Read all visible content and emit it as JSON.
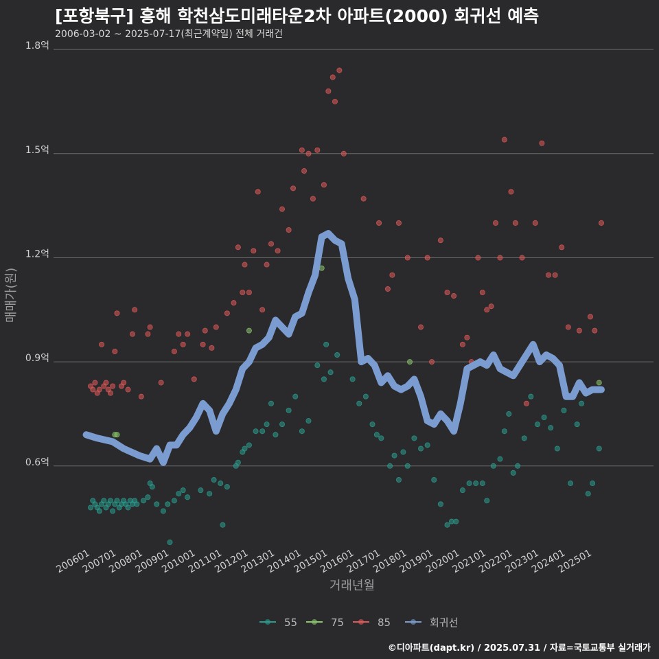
{
  "title": "[포항북구] 흥해 학천삼도미래타운2차 아파트(2000) 회귀선 예측",
  "subtitle": "2006-03-02 ~ 2025-07-17(최근계약일) 전체 거래건",
  "footer": "©디아파트(dapt.kr) / 2025.07.31 / 자료=국토교통부 실거래가",
  "chart_data": {
    "type": "scatter",
    "xlabel": "거래년월",
    "ylabel": "매매가(원)",
    "x_range": [
      "2005-10",
      "2025-12"
    ],
    "ylim": [
      0.38,
      1.82
    ],
    "y_ticks": [
      {
        "value": 0.6,
        "label": "0.6억"
      },
      {
        "value": 0.9,
        "label": "0.9억"
      },
      {
        "value": 1.2,
        "label": "1.2억"
      },
      {
        "value": 1.5,
        "label": "1.5억"
      },
      {
        "value": 1.8,
        "label": "1.8억"
      }
    ],
    "x_ticks": [
      "200601",
      "200701",
      "200801",
      "200901",
      "201001",
      "201101",
      "201201",
      "201301",
      "201401",
      "201501",
      "201601",
      "201701",
      "201801",
      "201901",
      "202001",
      "202101",
      "202201",
      "202301",
      "202401",
      "202501"
    ],
    "grid": "horizontal",
    "legend_position": "bottom",
    "colors": {
      "55": "#2a9d8f",
      "75": "#8cc66d",
      "85": "#e05a5a",
      "회귀선": "#7b9cd0"
    },
    "series": [
      {
        "name": "55",
        "color": "#2a9d8f",
        "kind": "points",
        "points": [
          [
            "2006-03",
            0.48
          ],
          [
            "2006-04",
            0.5
          ],
          [
            "2006-05",
            0.49
          ],
          [
            "2006-06",
            0.48
          ],
          [
            "2006-07",
            0.47
          ],
          [
            "2006-08",
            0.49
          ],
          [
            "2006-09",
            0.5
          ],
          [
            "2006-10",
            0.48
          ],
          [
            "2006-11",
            0.49
          ],
          [
            "2006-12",
            0.5
          ],
          [
            "2007-01",
            0.47
          ],
          [
            "2007-02",
            0.49
          ],
          [
            "2007-03",
            0.5
          ],
          [
            "2007-04",
            0.48
          ],
          [
            "2007-05",
            0.49
          ],
          [
            "2007-06",
            0.5
          ],
          [
            "2007-07",
            0.49
          ],
          [
            "2007-08",
            0.48
          ],
          [
            "2007-09",
            0.5
          ],
          [
            "2007-10",
            0.49
          ],
          [
            "2007-11",
            0.5
          ],
          [
            "2007-12",
            0.49
          ],
          [
            "2008-03",
            0.5
          ],
          [
            "2008-05",
            0.51
          ],
          [
            "2008-06",
            0.55
          ],
          [
            "2008-07",
            0.54
          ],
          [
            "2008-09",
            0.49
          ],
          [
            "2008-12",
            0.47
          ],
          [
            "2009-02",
            0.49
          ],
          [
            "2009-03",
            0.38
          ],
          [
            "2009-05",
            0.5
          ],
          [
            "2009-07",
            0.52
          ],
          [
            "2009-09",
            0.53
          ],
          [
            "2009-11",
            0.51
          ],
          [
            "2010-05",
            0.53
          ],
          [
            "2010-09",
            0.52
          ],
          [
            "2010-11",
            0.56
          ],
          [
            "2011-02",
            0.55
          ],
          [
            "2011-03",
            0.43
          ],
          [
            "2011-05",
            0.54
          ],
          [
            "2011-09",
            0.6
          ],
          [
            "2011-10",
            0.61
          ],
          [
            "2011-12",
            0.64
          ],
          [
            "2012-01",
            0.65
          ],
          [
            "2012-03",
            0.66
          ],
          [
            "2012-06",
            0.7
          ],
          [
            "2012-09",
            0.7
          ],
          [
            "2012-11",
            0.72
          ],
          [
            "2013-01",
            0.78
          ],
          [
            "2013-03",
            0.69
          ],
          [
            "2013-06",
            0.72
          ],
          [
            "2013-09",
            0.76
          ],
          [
            "2013-12",
            0.8
          ],
          [
            "2014-03",
            0.7
          ],
          [
            "2014-06",
            0.73
          ],
          [
            "2014-10",
            0.89
          ],
          [
            "2015-01",
            0.85
          ],
          [
            "2015-02",
            0.95
          ],
          [
            "2015-04",
            0.87
          ],
          [
            "2015-07",
            0.92
          ],
          [
            "2016-02",
            0.85
          ],
          [
            "2016-05",
            0.78
          ],
          [
            "2016-08",
            0.8
          ],
          [
            "2016-11",
            0.72
          ],
          [
            "2017-01",
            0.69
          ],
          [
            "2017-03",
            0.68
          ],
          [
            "2017-07",
            0.6
          ],
          [
            "2017-09",
            0.63
          ],
          [
            "2017-11",
            0.56
          ],
          [
            "2018-01",
            0.64
          ],
          [
            "2018-03",
            0.6
          ],
          [
            "2018-06",
            0.68
          ],
          [
            "2018-09",
            0.65
          ],
          [
            "2018-12",
            0.66
          ],
          [
            "2019-03",
            0.56
          ],
          [
            "2019-06",
            0.49
          ],
          [
            "2019-09",
            0.43
          ],
          [
            "2019-11",
            0.44
          ],
          [
            "2020-01",
            0.44
          ],
          [
            "2020-04",
            0.53
          ],
          [
            "2020-07",
            0.55
          ],
          [
            "2020-10",
            0.55
          ],
          [
            "2021-01",
            0.55
          ],
          [
            "2021-03",
            0.5
          ],
          [
            "2021-06",
            0.6
          ],
          [
            "2021-09",
            0.62
          ],
          [
            "2021-11",
            0.7
          ],
          [
            "2022-01",
            0.75
          ],
          [
            "2022-03",
            0.58
          ],
          [
            "2022-05",
            0.6
          ],
          [
            "2022-08",
            0.68
          ],
          [
            "2022-11",
            0.8
          ],
          [
            "2023-02",
            0.72
          ],
          [
            "2023-05",
            0.74
          ],
          [
            "2023-08",
            0.71
          ],
          [
            "2023-11",
            0.65
          ],
          [
            "2024-02",
            0.76
          ],
          [
            "2024-05",
            0.55
          ],
          [
            "2024-08",
            0.72
          ],
          [
            "2024-10",
            0.78
          ],
          [
            "2025-01",
            0.52
          ],
          [
            "2025-03",
            0.55
          ],
          [
            "2025-06",
            0.65
          ]
        ]
      },
      {
        "name": "75",
        "color": "#8cc66d",
        "kind": "points",
        "points": [
          [
            "2007-02",
            0.69
          ],
          [
            "2007-03",
            0.69
          ],
          [
            "2012-03",
            0.99
          ],
          [
            "2014-12",
            1.17
          ],
          [
            "2018-04",
            0.9
          ],
          [
            "2025-06",
            0.84
          ]
        ]
      },
      {
        "name": "85",
        "color": "#e05a5a",
        "kind": "points",
        "points": [
          [
            "2006-03",
            0.83
          ],
          [
            "2006-04",
            0.82
          ],
          [
            "2006-05",
            0.84
          ],
          [
            "2006-06",
            0.81
          ],
          [
            "2006-07",
            0.82
          ],
          [
            "2006-08",
            0.95
          ],
          [
            "2006-09",
            0.83
          ],
          [
            "2006-10",
            0.84
          ],
          [
            "2006-11",
            0.82
          ],
          [
            "2006-12",
            0.81
          ],
          [
            "2007-01",
            0.83
          ],
          [
            "2007-02",
            0.93
          ],
          [
            "2007-03",
            1.04
          ],
          [
            "2007-05",
            0.83
          ],
          [
            "2007-06",
            0.84
          ],
          [
            "2007-08",
            0.82
          ],
          [
            "2007-10",
            0.98
          ],
          [
            "2007-11",
            1.05
          ],
          [
            "2008-02",
            0.8
          ],
          [
            "2008-06",
            1.0
          ],
          [
            "2008-05",
            0.98
          ],
          [
            "2008-11",
            0.84
          ],
          [
            "2009-05",
            0.93
          ],
          [
            "2009-07",
            0.98
          ],
          [
            "2009-09",
            0.95
          ],
          [
            "2009-11",
            0.98
          ],
          [
            "2010-02",
            0.85
          ],
          [
            "2010-06",
            0.95
          ],
          [
            "2010-07",
            0.99
          ],
          [
            "2010-10",
            0.94
          ],
          [
            "2010-12",
            1.0
          ],
          [
            "2011-05",
            1.04
          ],
          [
            "2011-08",
            1.07
          ],
          [
            "2011-10",
            1.23
          ],
          [
            "2011-12",
            1.1
          ],
          [
            "2012-01",
            1.18
          ],
          [
            "2012-03",
            1.1
          ],
          [
            "2012-05",
            1.22
          ],
          [
            "2012-07",
            1.39
          ],
          [
            "2012-09",
            1.05
          ],
          [
            "2012-11",
            1.18
          ],
          [
            "2013-01",
            1.24
          ],
          [
            "2013-04",
            1.22
          ],
          [
            "2013-06",
            1.34
          ],
          [
            "2013-09",
            1.28
          ],
          [
            "2013-11",
            1.4
          ],
          [
            "2014-03",
            1.51
          ],
          [
            "2014-04",
            1.45
          ],
          [
            "2014-06",
            1.5
          ],
          [
            "2014-08",
            1.37
          ],
          [
            "2014-10",
            1.51
          ],
          [
            "2015-01",
            1.41
          ],
          [
            "2015-03",
            1.68
          ],
          [
            "2015-05",
            1.72
          ],
          [
            "2015-06",
            1.65
          ],
          [
            "2015-08",
            1.74
          ],
          [
            "2015-10",
            1.5
          ],
          [
            "2016-07",
            1.37
          ],
          [
            "2017-02",
            1.3
          ],
          [
            "2017-06",
            1.11
          ],
          [
            "2017-08",
            1.15
          ],
          [
            "2017-11",
            1.3
          ],
          [
            "2018-03",
            1.2
          ],
          [
            "2018-09",
            1.0
          ],
          [
            "2018-12",
            1.2
          ],
          [
            "2019-02",
            0.9
          ],
          [
            "2019-06",
            1.25
          ],
          [
            "2019-09",
            1.1
          ],
          [
            "2019-12",
            1.09
          ],
          [
            "2020-04",
            0.95
          ],
          [
            "2020-06",
            0.97
          ],
          [
            "2020-08",
            0.9
          ],
          [
            "2020-11",
            1.2
          ],
          [
            "2021-01",
            1.1
          ],
          [
            "2021-03",
            1.05
          ],
          [
            "2021-05",
            1.06
          ],
          [
            "2021-07",
            1.3
          ],
          [
            "2021-09",
            1.2
          ],
          [
            "2021-11",
            1.54
          ],
          [
            "2022-02",
            1.39
          ],
          [
            "2022-04",
            1.3
          ],
          [
            "2022-07",
            1.2
          ],
          [
            "2022-09",
            0.78
          ],
          [
            "2023-01",
            1.3
          ],
          [
            "2023-04",
            1.53
          ],
          [
            "2023-07",
            1.15
          ],
          [
            "2023-10",
            1.15
          ],
          [
            "2024-01",
            1.23
          ],
          [
            "2024-04",
            1.0
          ],
          [
            "2024-09",
            0.99
          ],
          [
            "2025-02",
            1.03
          ],
          [
            "2025-04",
            0.99
          ],
          [
            "2025-07",
            1.3
          ]
        ]
      },
      {
        "name": "회귀선",
        "color": "#7b9cd0",
        "kind": "line",
        "points": [
          [
            "2006-01",
            0.69
          ],
          [
            "2006-06",
            0.68
          ],
          [
            "2007-01",
            0.67
          ],
          [
            "2007-06",
            0.65
          ],
          [
            "2008-01",
            0.63
          ],
          [
            "2008-06",
            0.62
          ],
          [
            "2008-09",
            0.65
          ],
          [
            "2008-12",
            0.61
          ],
          [
            "2009-03",
            0.66
          ],
          [
            "2009-06",
            0.66
          ],
          [
            "2009-09",
            0.69
          ],
          [
            "2009-12",
            0.71
          ],
          [
            "2010-03",
            0.74
          ],
          [
            "2010-06",
            0.78
          ],
          [
            "2010-09",
            0.76
          ],
          [
            "2010-12",
            0.7
          ],
          [
            "2011-03",
            0.75
          ],
          [
            "2011-06",
            0.78
          ],
          [
            "2011-09",
            0.82
          ],
          [
            "2011-12",
            0.88
          ],
          [
            "2012-03",
            0.9
          ],
          [
            "2012-06",
            0.94
          ],
          [
            "2012-09",
            0.95
          ],
          [
            "2012-12",
            0.97
          ],
          [
            "2013-03",
            1.02
          ],
          [
            "2013-06",
            1.0
          ],
          [
            "2013-09",
            0.98
          ],
          [
            "2013-12",
            1.03
          ],
          [
            "2014-03",
            1.04
          ],
          [
            "2014-06",
            1.1
          ],
          [
            "2014-09",
            1.15
          ],
          [
            "2014-12",
            1.26
          ],
          [
            "2015-03",
            1.27
          ],
          [
            "2015-06",
            1.25
          ],
          [
            "2015-09",
            1.24
          ],
          [
            "2015-12",
            1.14
          ],
          [
            "2016-03",
            1.08
          ],
          [
            "2016-06",
            0.9
          ],
          [
            "2016-09",
            0.91
          ],
          [
            "2016-12",
            0.89
          ],
          [
            "2017-03",
            0.84
          ],
          [
            "2017-06",
            0.86
          ],
          [
            "2017-09",
            0.83
          ],
          [
            "2017-12",
            0.82
          ],
          [
            "2018-03",
            0.83
          ],
          [
            "2018-06",
            0.85
          ],
          [
            "2018-09",
            0.8
          ],
          [
            "2018-12",
            0.73
          ],
          [
            "2019-03",
            0.72
          ],
          [
            "2019-06",
            0.75
          ],
          [
            "2019-09",
            0.73
          ],
          [
            "2019-12",
            0.7
          ],
          [
            "2020-03",
            0.78
          ],
          [
            "2020-06",
            0.88
          ],
          [
            "2020-09",
            0.89
          ],
          [
            "2020-12",
            0.9
          ],
          [
            "2021-03",
            0.89
          ],
          [
            "2021-06",
            0.92
          ],
          [
            "2021-09",
            0.88
          ],
          [
            "2021-12",
            0.87
          ],
          [
            "2022-03",
            0.86
          ],
          [
            "2022-06",
            0.89
          ],
          [
            "2022-09",
            0.92
          ],
          [
            "2022-12",
            0.95
          ],
          [
            "2023-03",
            0.9
          ],
          [
            "2023-06",
            0.92
          ],
          [
            "2023-09",
            0.91
          ],
          [
            "2023-12",
            0.89
          ],
          [
            "2024-03",
            0.8
          ],
          [
            "2024-06",
            0.8
          ],
          [
            "2024-09",
            0.84
          ],
          [
            "2024-12",
            0.81
          ],
          [
            "2025-03",
            0.82
          ],
          [
            "2025-07",
            0.82
          ]
        ]
      }
    ]
  }
}
